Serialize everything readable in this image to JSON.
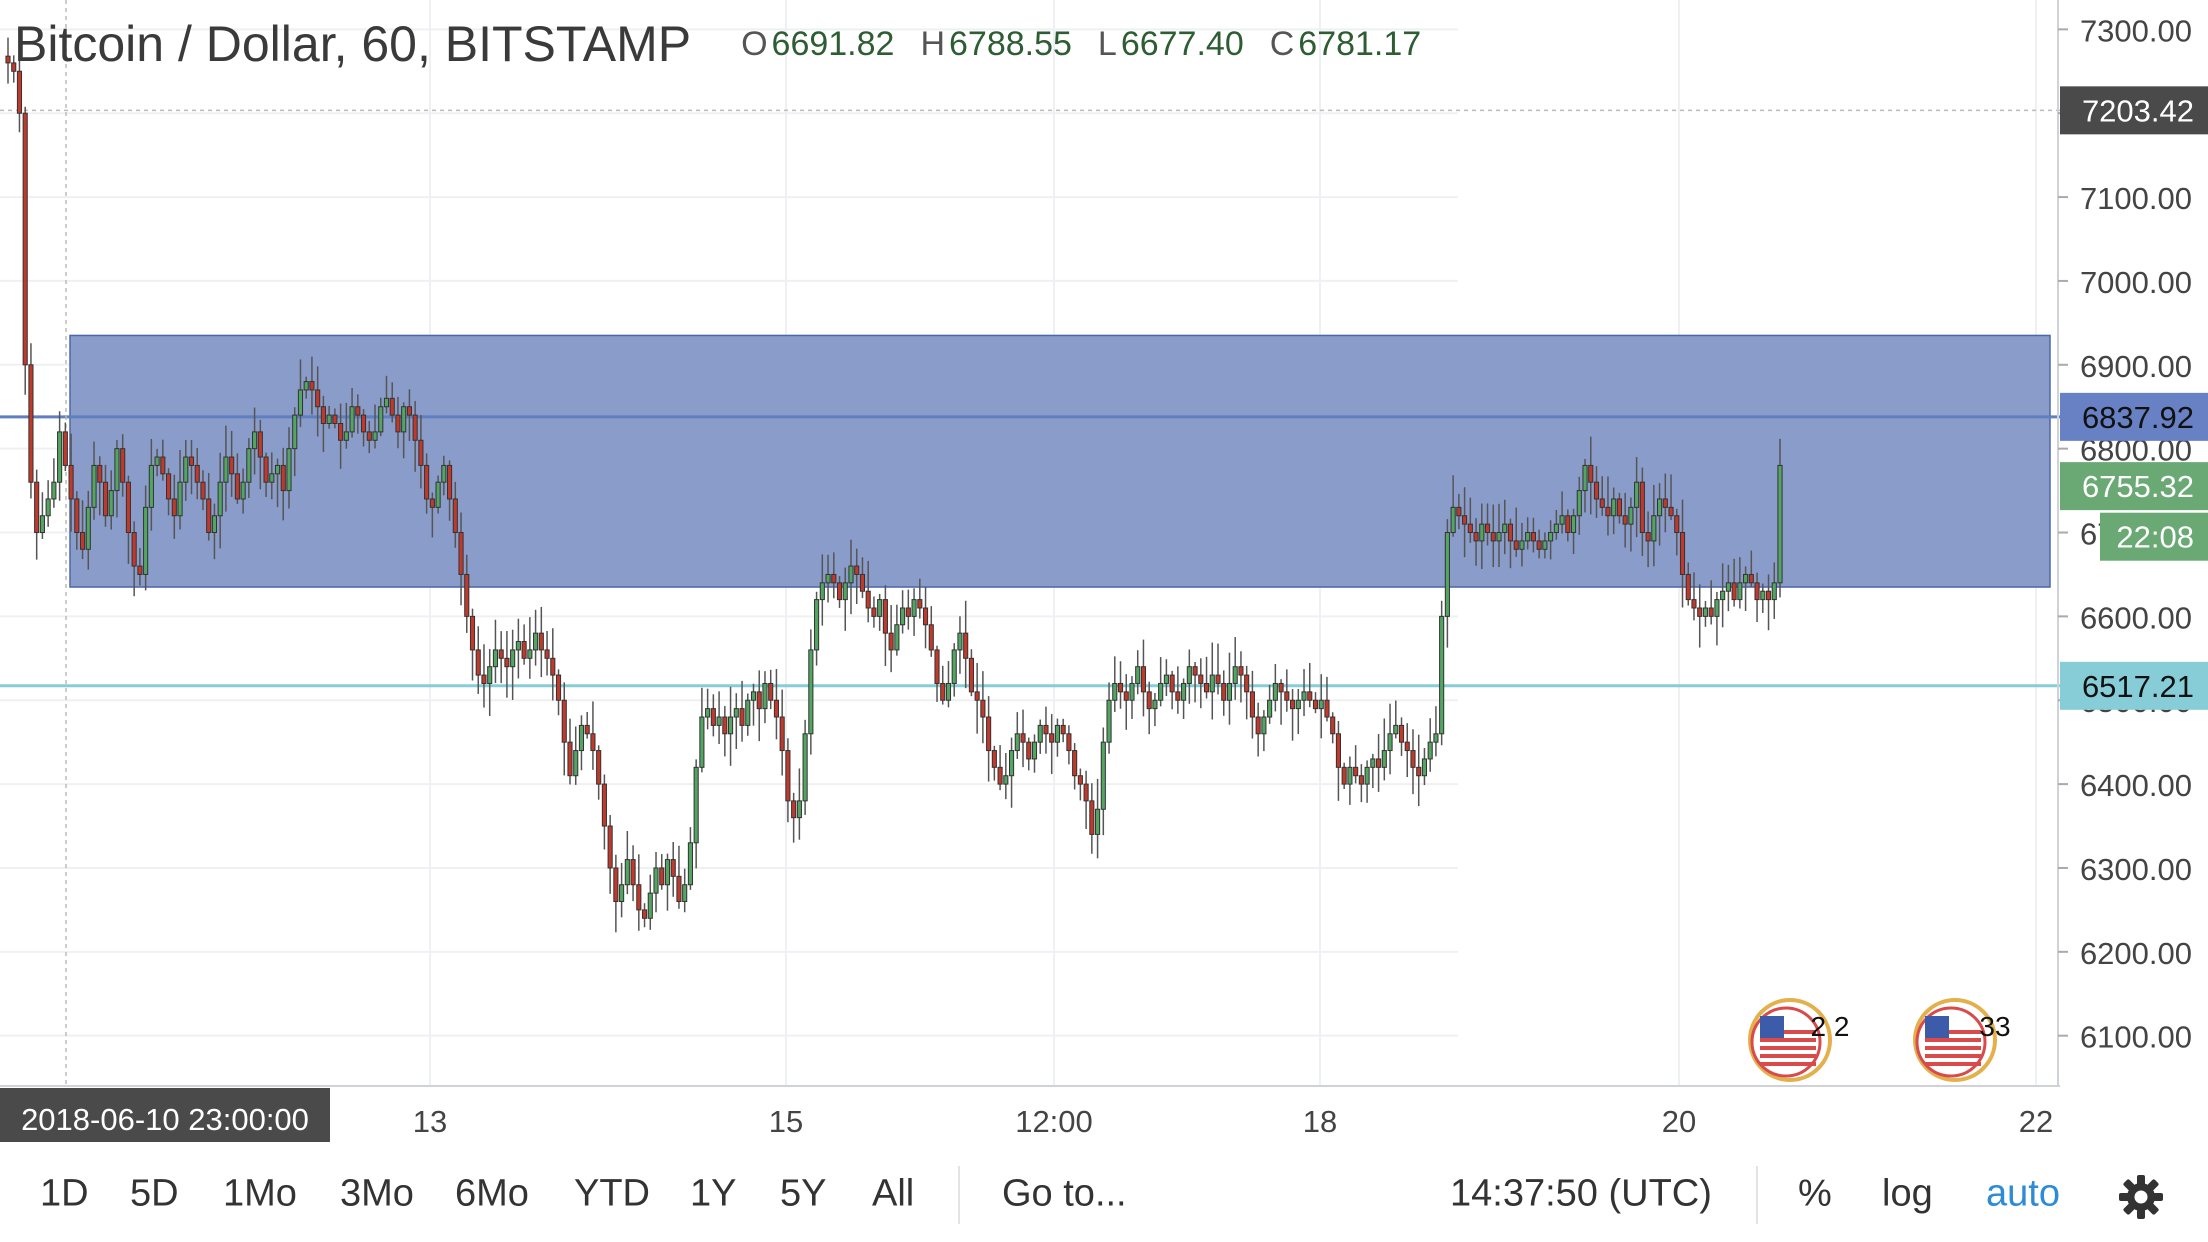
{
  "legend": {
    "symbol": "Bitcoin / Dollar, 60, BITSTAMP",
    "open_label": "O",
    "open": "6691.82",
    "high_label": "H",
    "high": "6788.55",
    "low_label": "L",
    "low": "6677.40",
    "close_label": "C",
    "close": "6781.17"
  },
  "toolbar": {
    "ranges": [
      "1D",
      "5D",
      "1Mo",
      "3Mo",
      "6Mo",
      "YTD",
      "1Y",
      "5Y",
      "All"
    ],
    "goto": "Go to...",
    "clock": "14:37:50 (UTC)",
    "percent": "%",
    "log": "log",
    "auto": "auto",
    "settings_icon": "gear-icon"
  },
  "colors": {
    "up": "#53a562",
    "down": "#c0392b",
    "zone_fill": "#8a9cc9",
    "zone_line": "#5f7fc0",
    "support_line": "#86cdd8",
    "axis_dark_label": "#4a4a4a",
    "axis_blue_label": "#6880c4",
    "axis_teal_label": "#87cdd8",
    "axis_green_label": "#6aa974"
  },
  "chart_data": {
    "type": "candlestick",
    "title": "Bitcoin / Dollar, 60, BITSTAMP",
    "ylim": [
      6040,
      7335
    ],
    "y_ticks": [
      7300,
      7200,
      7100,
      7000,
      6900,
      6800,
      6700,
      6600,
      6500,
      6400,
      6300,
      6200,
      6100
    ],
    "y_tick_labels": [
      "7300.00",
      "7200.00",
      "7100.00",
      "7000.00",
      "6900.00",
      "6800.00",
      "6700.00",
      "6600.00",
      "6500.00",
      "6400.00",
      "6300.00",
      "6200.00",
      "6100.00"
    ],
    "x_tick_labels": [
      "13",
      "15",
      "12:00",
      "18",
      "20",
      "22"
    ],
    "crosshair_time": "2018-06-10 23:00:00",
    "price_labels": [
      {
        "value": 7203.42,
        "text": "7203.42",
        "style": "dark"
      },
      {
        "value": 6837.92,
        "text": "6837.92",
        "style": "blue"
      },
      {
        "value": 6755.32,
        "text": "6755.32",
        "style": "green"
      },
      {
        "value": 6695,
        "text": "22:08",
        "style": "green-countdown"
      },
      {
        "value": 6517.21,
        "text": "6517.21",
        "style": "teal"
      }
    ],
    "zone": {
      "top": 6935,
      "bottom": 6635
    },
    "hlines": [
      {
        "value": 6837.92,
        "color": "zone_line"
      },
      {
        "value": 6517.21,
        "color": "support_line"
      },
      {
        "value": 7203.42,
        "color": "dotted"
      }
    ],
    "events": [
      {
        "type": "us-flag-event-icon",
        "label": "2 2"
      },
      {
        "type": "us-flag-event-icon",
        "label": "33"
      }
    ],
    "price_path": [
      7260,
      7250,
      7200,
      6900,
      6760,
      6700,
      6720,
      6740,
      6760,
      6820,
      6780,
      6740,
      6700,
      6680,
      6730,
      6780,
      6760,
      6720,
      6750,
      6800,
      6760,
      6700,
      6660,
      6650,
      6730,
      6780,
      6790,
      6770,
      6740,
      6720,
      6760,
      6790,
      6780,
      6760,
      6740,
      6700,
      6720,
      6760,
      6790,
      6770,
      6740,
      6760,
      6800,
      6820,
      6790,
      6760,
      6770,
      6780,
      6750,
      6800,
      6840,
      6870,
      6880,
      6870,
      6850,
      6830,
      6840,
      6830,
      6810,
      6820,
      6850,
      6840,
      6820,
      6810,
      6820,
      6850,
      6860,
      6840,
      6820,
      6850,
      6840,
      6810,
      6780,
      6740,
      6730,
      6760,
      6780,
      6740,
      6700,
      6650,
      6600,
      6560,
      6530,
      6520,
      6540,
      6560,
      6550,
      6540,
      6560,
      6570,
      6550,
      6560,
      6580,
      6560,
      6550,
      6530,
      6500,
      6450,
      6410,
      6440,
      6470,
      6460,
      6440,
      6400,
      6350,
      6300,
      6260,
      6280,
      6310,
      6280,
      6250,
      6240,
      6270,
      6300,
      6280,
      6310,
      6290,
      6260,
      6280,
      6330,
      6420,
      6480,
      6490,
      6470,
      6480,
      6460,
      6480,
      6490,
      6470,
      6500,
      6510,
      6490,
      6520,
      6500,
      6480,
      6440,
      6380,
      6360,
      6380,
      6460,
      6560,
      6620,
      6640,
      6650,
      6640,
      6620,
      6640,
      6660,
      6650,
      6630,
      6610,
      6600,
      6620,
      6580,
      6560,
      6590,
      6610,
      6600,
      6620,
      6610,
      6590,
      6560,
      6520,
      6500,
      6520,
      6560,
      6580,
      6550,
      6510,
      6500,
      6480,
      6440,
      6420,
      6400,
      6410,
      6440,
      6460,
      6450,
      6430,
      6450,
      6470,
      6460,
      6450,
      6470,
      6460,
      6440,
      6410,
      6400,
      6380,
      6340,
      6370,
      6450,
      6500,
      6520,
      6510,
      6500,
      6520,
      6540,
      6510,
      6490,
      6500,
      6520,
      6530,
      6510,
      6500,
      6520,
      6540,
      6530,
      6520,
      6510,
      6530,
      6520,
      6500,
      6520,
      6540,
      6530,
      6510,
      6480,
      6460,
      6480,
      6500,
      6520,
      6510,
      6500,
      6490,
      6500,
      6510,
      6500,
      6490,
      6500,
      6480,
      6460,
      6420,
      6400,
      6420,
      6410,
      6400,
      6420,
      6430,
      6420,
      6440,
      6460,
      6470,
      6450,
      6440,
      6420,
      6410,
      6430,
      6450,
      6460,
      6600,
      6700,
      6730,
      6720,
      6710,
      6700,
      6690,
      6710,
      6700,
      6690,
      6700,
      6710,
      6690,
      6680,
      6690,
      6700,
      6690,
      6680,
      6690,
      6700,
      6710,
      6720,
      6700,
      6720,
      6750,
      6780,
      6760,
      6740,
      6730,
      6720,
      6740,
      6720,
      6710,
      6730,
      6760,
      6700,
      6690,
      6720,
      6740,
      6730,
      6720,
      6700,
      6650,
      6620,
      6610,
      6600,
      6610,
      6600,
      6620,
      6630,
      6640,
      6620,
      6640,
      6650,
      6640,
      6620,
      6630,
      6620,
      6640,
      6780
    ]
  }
}
